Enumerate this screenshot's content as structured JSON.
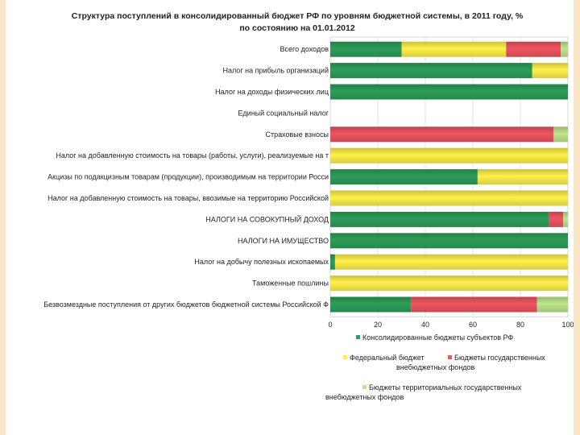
{
  "chart_data": {
    "type": "bar",
    "orientation": "horizontal",
    "stacked": true,
    "title": "Структура поступлений в консолидированный бюджет РФ по уровням бюджетной системы, в 2011 году, %",
    "subtitle": "по состоянию на 01.01.2012",
    "xlim": [
      0,
      100
    ],
    "xticks": [
      "0",
      "20",
      "40",
      "60",
      "80",
      "100"
    ],
    "grid": true,
    "legend_position": "bottom",
    "categories": [
      "Всего доходов",
      "Налог на прибыль организаций",
      "Налог на доходы физических лиц",
      "Единый социальный налог",
      "Страховые взносы",
      "Налог на добавленную стоимость на товары (работы, услуги), реализуемые на т",
      "Акцизы по подакцизным товарам (продукции), производимым на территории Росси",
      "Налог на добавленную стоимость на товары, ввозимые на территорию Российской",
      "НАЛОГИ НА СОВОКУПНЫЙ ДОХОД",
      "НАЛОГИ НА ИМУЩЕСТВО",
      "Налог на добычу полезных ископаемых",
      "Таможенные пошлины",
      "Безвозмездные поступления от других бюджетов бюджетной системы Российской Ф"
    ],
    "series": [
      {
        "name": "Консолидированные бюджеты субъектов РФ",
        "color": "#2e9e5a",
        "values": [
          30,
          85,
          100,
          0,
          0,
          0,
          62,
          0,
          92,
          100,
          2,
          0,
          34
        ]
      },
      {
        "name": "Федеральный бюджет",
        "color": "#fff04a",
        "values": [
          44,
          15,
          0,
          0,
          0,
          100,
          38,
          100,
          0,
          0,
          98,
          100,
          0
        ]
      },
      {
        "name": "Бюджеты государственных внебюджетных фондов",
        "color": "#ee5560",
        "values": [
          23,
          0,
          0,
          0,
          94,
          0,
          0,
          0,
          6,
          0,
          0,
          0,
          53
        ]
      },
      {
        "name": "Бюджеты территориальных государственных внебюджетных фондов",
        "color": "#bde68c",
        "values": [
          3,
          0,
          0,
          0,
          6,
          0,
          0,
          0,
          2,
          0,
          0,
          0,
          13
        ]
      }
    ]
  }
}
